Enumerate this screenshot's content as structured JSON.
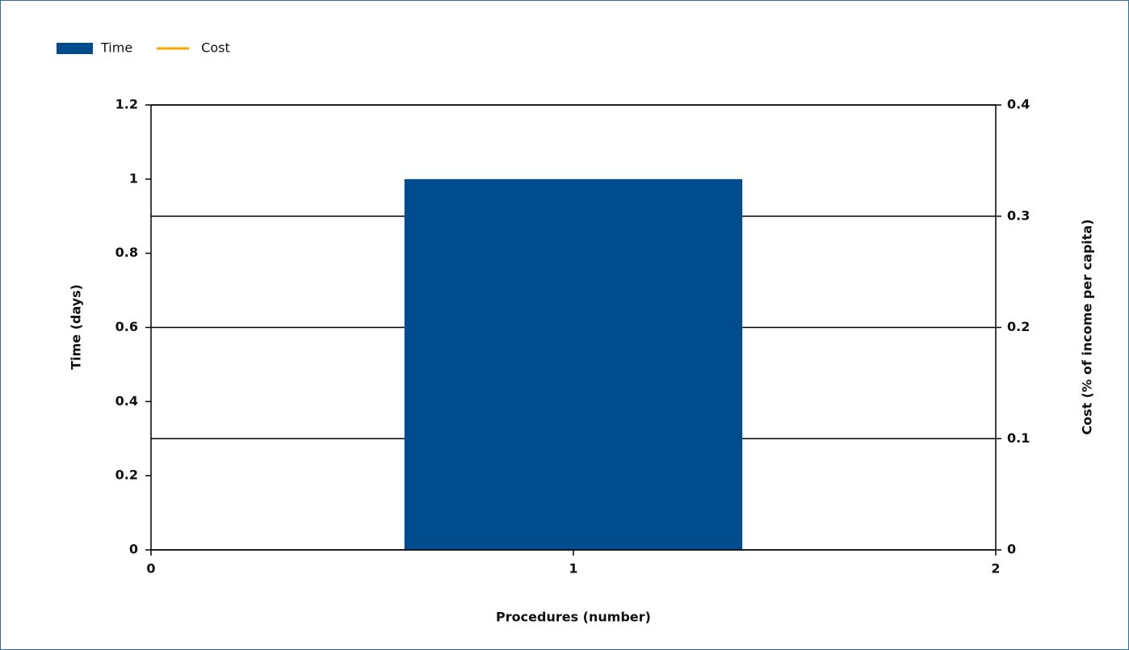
{
  "chart_data": {
    "type": "bar",
    "x": [
      1
    ],
    "series": [
      {
        "name": "Time",
        "color": "#004c8c",
        "values": [
          1
        ]
      },
      {
        "name": "Cost",
        "color": "#ffa500",
        "values": [
          null
        ],
        "axis": "y2"
      }
    ],
    "xlabel": "Procedures (number)",
    "ylabel": "Time (days)",
    "y2label": "Cost (% of income per capita)",
    "xlim": [
      0,
      2
    ],
    "xticks": [
      0,
      1,
      2
    ],
    "ylim": [
      0,
      1.2
    ],
    "yticks": [
      0,
      0.2,
      0.4,
      0.6,
      0.8,
      1,
      1.2
    ],
    "y2lim": [
      0,
      0.4
    ],
    "y2ticks": [
      0,
      0.1,
      0.2,
      0.3,
      0.4
    ],
    "grid": "y2",
    "legend": "top-left"
  }
}
